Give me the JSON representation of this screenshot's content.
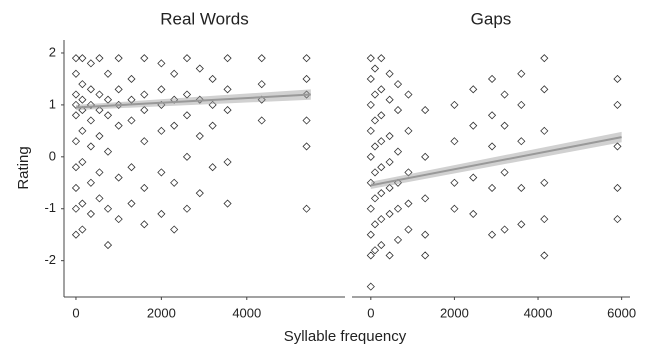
{
  "chart_data": {
    "type": "scatter",
    "ylabel": "Rating",
    "xlabel": "Syllable frequency",
    "ylim": [
      -2.7,
      2.25
    ],
    "yticks": [
      -2,
      -1,
      0,
      1,
      2
    ],
    "color": "#000000",
    "trend_color": "#999999",
    "panels": [
      {
        "title": "Real Words",
        "xlim": [
          -280,
          6300
        ],
        "xticks": [
          0,
          2000,
          4000
        ],
        "x": [
          0,
          0,
          0,
          0,
          0,
          0,
          0,
          0,
          0,
          0,
          150,
          150,
          150,
          150,
          150,
          150,
          150,
          150,
          350,
          350,
          350,
          350,
          350,
          350,
          350,
          550,
          550,
          550,
          550,
          550,
          550,
          750,
          750,
          750,
          750,
          750,
          750,
          1000,
          1000,
          1000,
          1000,
          1000,
          1000,
          1300,
          1300,
          1300,
          1300,
          1300,
          1600,
          1600,
          1600,
          1600,
          1600,
          1600,
          2000,
          2000,
          2000,
          2000,
          2000,
          2000,
          2300,
          2300,
          2300,
          2300,
          2300,
          2600,
          2600,
          2600,
          2600,
          2600,
          2900,
          2900,
          2900,
          2900,
          3200,
          3200,
          3200,
          3200,
          3550,
          3550,
          3550,
          3550,
          3550,
          4350,
          4350,
          4350,
          4350,
          5400,
          5400,
          5400,
          5400,
          5400,
          5400
        ],
        "y": [
          1.9,
          1.6,
          1.2,
          1.0,
          0.8,
          0.3,
          -0.2,
          -0.6,
          -1.0,
          -1.5,
          1.9,
          1.4,
          1.1,
          0.9,
          0.5,
          -0.1,
          -0.9,
          -1.4,
          1.8,
          1.3,
          1.0,
          0.7,
          0.2,
          -0.5,
          -1.1,
          1.9,
          1.2,
          0.9,
          0.4,
          -0.3,
          -0.8,
          1.6,
          1.1,
          0.8,
          0.1,
          -1.0,
          -1.7,
          1.9,
          1.3,
          1.0,
          0.6,
          -0.4,
          -1.2,
          1.5,
          1.1,
          0.7,
          -0.2,
          -0.9,
          1.9,
          1.2,
          0.9,
          0.3,
          -0.6,
          -1.3,
          1.8,
          1.3,
          1.0,
          0.5,
          -0.3,
          -1.1,
          1.6,
          1.1,
          0.6,
          -0.5,
          -1.4,
          1.9,
          1.2,
          0.8,
          0.0,
          -1.0,
          1.7,
          1.1,
          0.4,
          -0.7,
          1.5,
          1.0,
          0.6,
          -0.2,
          1.9,
          1.3,
          0.9,
          -0.1,
          -0.9,
          1.9,
          1.4,
          1.1,
          0.7,
          1.9,
          1.5,
          1.2,
          0.7,
          0.2,
          -1.0
        ],
        "trend": {
          "x": [
            0,
            5500
          ],
          "y": [
            0.95,
            1.2
          ],
          "lower": [
            0.9,
            1.1
          ],
          "upper": [
            1.0,
            1.3
          ]
        }
      },
      {
        "title": "Gaps",
        "xlim": [
          -450,
          6200
        ],
        "xticks": [
          0,
          2000,
          4000,
          6000
        ],
        "x": [
          0,
          0,
          0,
          0,
          0,
          0,
          0,
          0,
          0,
          0,
          100,
          100,
          100,
          100,
          100,
          100,
          100,
          100,
          250,
          250,
          250,
          250,
          250,
          250,
          250,
          250,
          450,
          450,
          450,
          450,
          450,
          450,
          450,
          650,
          650,
          650,
          650,
          650,
          650,
          900,
          900,
          900,
          900,
          900,
          1300,
          1300,
          1300,
          1300,
          1300,
          2000,
          2000,
          2000,
          2000,
          2450,
          2450,
          2450,
          2450,
          2900,
          2900,
          2900,
          2900,
          2900,
          3200,
          3200,
          3200,
          3200,
          3600,
          3600,
          3600,
          3600,
          3600,
          4150,
          4150,
          4150,
          4150,
          4150,
          4150,
          5900,
          5900,
          5900,
          5900,
          5900
        ],
        "y": [
          1.9,
          1.5,
          1.0,
          0.5,
          0.0,
          -0.5,
          -1.0,
          -1.5,
          -1.9,
          -2.5,
          1.7,
          1.2,
          0.7,
          0.2,
          -0.3,
          -0.8,
          -1.3,
          -1.8,
          1.9,
          1.3,
          0.8,
          0.3,
          -0.2,
          -0.7,
          -1.2,
          -1.7,
          1.6,
          1.1,
          0.4,
          -0.1,
          -0.6,
          -1.1,
          -1.9,
          1.4,
          0.9,
          0.1,
          -0.5,
          -1.0,
          -1.6,
          1.2,
          0.5,
          -0.3,
          -0.9,
          -1.4,
          0.9,
          0.0,
          -0.8,
          -1.5,
          -1.9,
          1.0,
          0.3,
          -0.5,
          -1.0,
          1.3,
          0.6,
          -0.4,
          -1.1,
          1.5,
          0.8,
          0.2,
          -0.6,
          -1.5,
          1.2,
          0.6,
          -0.3,
          -1.4,
          1.6,
          1.0,
          0.3,
          -0.6,
          -1.3,
          1.9,
          1.3,
          0.5,
          -0.5,
          -1.2,
          -1.9,
          1.5,
          1.0,
          0.2,
          -0.6,
          -1.2
        ],
        "trend": {
          "x": [
            0,
            6000
          ],
          "y": [
            -0.55,
            0.38
          ],
          "lower": [
            -0.62,
            0.28
          ],
          "upper": [
            -0.48,
            0.48
          ]
        }
      }
    ]
  }
}
